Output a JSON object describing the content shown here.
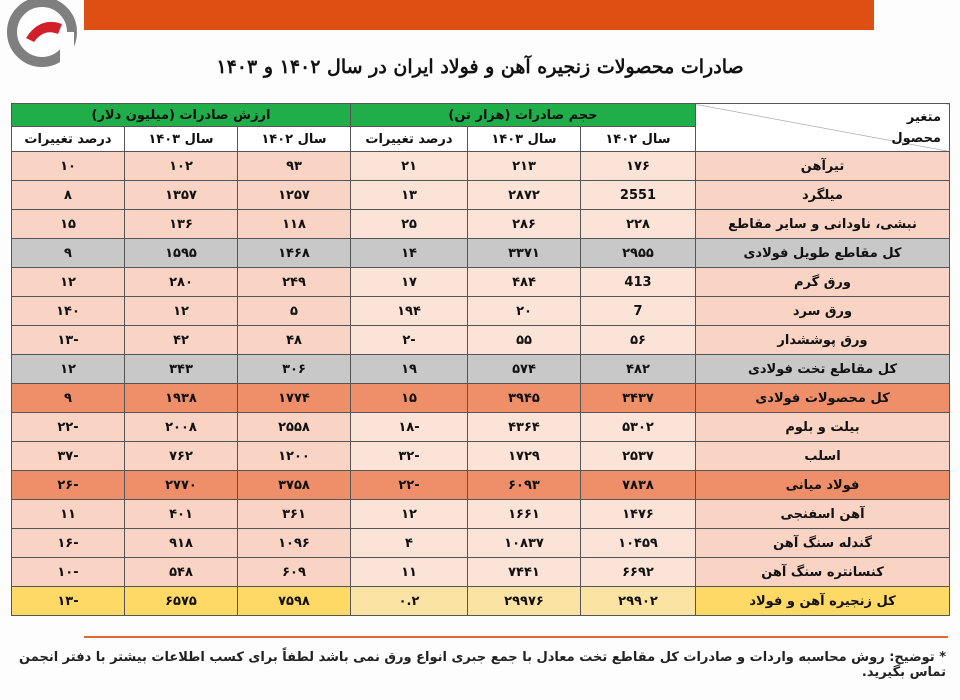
{
  "title": "صادرات محصولات زنجیره آهن و فولاد ایران در سال ۱۴۰۲ و ۱۴۰۳",
  "header": {
    "corner_top": "متغیر",
    "corner_bottom": "محصول",
    "group_volume": "حجم صادرات (هزار تن)",
    "group_value": "ارزش صادرات (میلیون دلار)",
    "col_1402": "سال ۱۴۰۲",
    "col_1403": "سال ۱۴۰۳",
    "col_change": "درصد تغییرات"
  },
  "rows": [
    {
      "name": "تیرآهن",
      "v1402": "۱۷۶",
      "v1403": "۲۱۳",
      "vchg": "۲۱",
      "d1402": "۹۳",
      "d1403": "۱۰۲",
      "dchg": "۱۰",
      "style": "light"
    },
    {
      "name": "میلگرد",
      "v1402": "2551",
      "v1403": "۲۸۷۲",
      "vchg": "۱۳",
      "d1402": "۱۲۵۷",
      "d1403": "۱۳۵۷",
      "dchg": "۸",
      "style": "light"
    },
    {
      "name": "نبشی، ناودانی و سایر مقاطع",
      "v1402": "۲۲۸",
      "v1403": "۲۸۶",
      "vchg": "۲۵",
      "d1402": "۱۱۸",
      "d1403": "۱۳۶",
      "dchg": "۱۵",
      "style": "light"
    },
    {
      "name": "کل مقاطع طویل فولادی",
      "v1402": "۲۹۵۵",
      "v1403": "۳۳۷۱",
      "vchg": "۱۴",
      "d1402": "۱۴۶۸",
      "d1403": "۱۵۹۵",
      "dchg": "۹",
      "style": "gray"
    },
    {
      "name": "ورق گرم",
      "v1402": "413",
      "v1403": "۴۸۴",
      "vchg": "۱۷",
      "d1402": "۲۴۹",
      "d1403": "۲۸۰",
      "dchg": "۱۲",
      "style": "light"
    },
    {
      "name": "ورق سرد",
      "v1402": "7",
      "v1403": "۲۰",
      "vchg": "۱۹۴",
      "d1402": "۵",
      "d1403": "۱۲",
      "dchg": "۱۴۰",
      "style": "light"
    },
    {
      "name": "ورق پوششدار",
      "v1402": "۵۶",
      "v1403": "۵۵",
      "vchg": "-۲",
      "d1402": "۴۸",
      "d1403": "۴۲",
      "dchg": "-۱۳",
      "style": "light"
    },
    {
      "name": "کل مقاطع تخت فولادی",
      "v1402": "۴۸۲",
      "v1403": "۵۷۴",
      "vchg": "۱۹",
      "d1402": "۳۰۶",
      "d1403": "۳۴۳",
      "dchg": "۱۲",
      "style": "gray"
    },
    {
      "name": "کل محصولات فولادی",
      "v1402": "۳۴۳۷",
      "v1403": "۳۹۴۵",
      "vchg": "۱۵",
      "d1402": "۱۷۷۴",
      "d1403": "۱۹۳۸",
      "dchg": "۹",
      "style": "orange"
    },
    {
      "name": "بیلت و بلوم",
      "v1402": "۵۳۰۲",
      "v1403": "۴۳۶۴",
      "vchg": "-۱۸",
      "d1402": "۲۵۵۸",
      "d1403": "۲۰۰۸",
      "dchg": "-۲۲",
      "style": "light"
    },
    {
      "name": "اسلب",
      "v1402": "۲۵۳۷",
      "v1403": "۱۷۲۹",
      "vchg": "-۳۲",
      "d1402": "۱۲۰۰",
      "d1403": "۷۶۲",
      "dchg": "-۳۷",
      "style": "light"
    },
    {
      "name": "فولاد میانی",
      "v1402": "۷۸۳۸",
      "v1403": "۶۰۹۳",
      "vchg": "-۲۲",
      "d1402": "۳۷۵۸",
      "d1403": "۲۷۷۰",
      "dchg": "-۲۶",
      "style": "orange"
    },
    {
      "name": "آهن اسفنجی",
      "v1402": "۱۴۷۶",
      "v1403": "۱۶۶۱",
      "vchg": "۱۲",
      "d1402": "۳۶۱",
      "d1403": "۴۰۱",
      "dchg": "۱۱",
      "style": "light"
    },
    {
      "name": "گندله سنگ آهن",
      "v1402": "۱۰۴۵۹",
      "v1403": "۱۰۸۳۷",
      "vchg": "۴",
      "d1402": "۱۰۹۶",
      "d1403": "۹۱۸",
      "dchg": "-۱۶",
      "style": "light"
    },
    {
      "name": "کنسانتره سنگ آهن",
      "v1402": "۶۶۹۲",
      "v1403": "۷۴۴۱",
      "vchg": "۱۱",
      "d1402": "۶۰۹",
      "d1403": "۵۴۸",
      "dchg": "-۱۰",
      "style": "light"
    },
    {
      "name": "کل زنجیره آهن و فولاد",
      "v1402": "۲۹۹۰۲",
      "v1403": "۲۹۹۷۶",
      "vchg": "۰.۲",
      "d1402": "۷۵۹۸",
      "d1403": "۶۵۷۵",
      "dchg": "-۱۳",
      "style": "yellow"
    }
  ],
  "footnote": "* توضیح: روش محاسبه واردات و صادرات کل مقاطع تخت معادل با جمع جبری انواع ورق نمی باشد لطفاً برای کسب اطلاعات بیشتر با دفتر انجمن تماس بگیرید."
}
